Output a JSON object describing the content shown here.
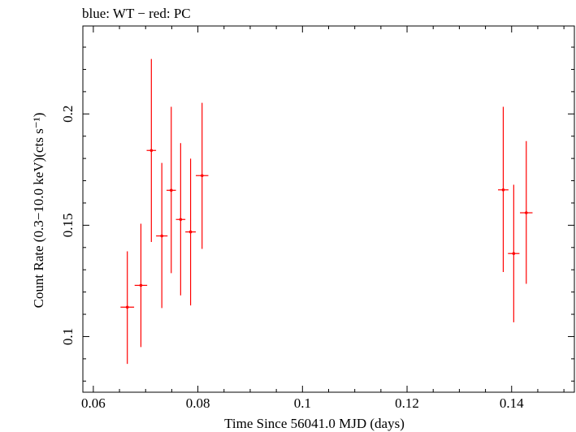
{
  "chart_data": {
    "type": "scatter",
    "title": "blue: WT − red: PC",
    "xlabel": "Time Since 56041.0 MJD (days)",
    "ylabel": "Count Rate (0.3−10.0 keV)(cts s⁻¹)",
    "xlim": [
      0.058,
      0.152
    ],
    "ylim": [
      0.075,
      0.2395
    ],
    "x_ticks": [
      0.06,
      0.08,
      0.1,
      0.12,
      0.14
    ],
    "x_tick_labels": [
      "0.06",
      "0.08",
      "0.1",
      "0.12",
      "0.14"
    ],
    "y_ticks": [
      0.1,
      0.15,
      0.2
    ],
    "y_tick_labels": [
      "0.1",
      "0.15",
      "0.2"
    ],
    "grid": false,
    "colors": {
      "series": "#ff0000",
      "axes": "#000000"
    },
    "series": [
      {
        "points": [
          {
            "x": 0.0665,
            "xerr": 0.0013,
            "y": 0.1132,
            "ylo": 0.0877,
            "yhi": 0.1383
          },
          {
            "x": 0.0691,
            "xerr": 0.0012,
            "y": 0.123,
            "ylo": 0.0953,
            "yhi": 0.1507
          },
          {
            "x": 0.0711,
            "xerr": 0.0009,
            "y": 0.1836,
            "ylo": 0.1425,
            "yhi": 0.2247
          },
          {
            "x": 0.0731,
            "xerr": 0.0011,
            "y": 0.1452,
            "ylo": 0.1128,
            "yhi": 0.178
          },
          {
            "x": 0.0749,
            "xerr": 0.0009,
            "y": 0.1657,
            "ylo": 0.1285,
            "yhi": 0.2032
          },
          {
            "x": 0.0767,
            "xerr": 0.0009,
            "y": 0.1526,
            "ylo": 0.1185,
            "yhi": 0.1869
          },
          {
            "x": 0.0786,
            "xerr": 0.001,
            "y": 0.147,
            "ylo": 0.114,
            "yhi": 0.1799
          },
          {
            "x": 0.0808,
            "xerr": 0.0012,
            "y": 0.1723,
            "ylo": 0.1394,
            "yhi": 0.205
          },
          {
            "x": 0.1384,
            "xerr": 0.001,
            "y": 0.1659,
            "ylo": 0.129,
            "yhi": 0.2032
          },
          {
            "x": 0.1404,
            "xerr": 0.0011,
            "y": 0.1373,
            "ylo": 0.1064,
            "yhi": 0.1682
          },
          {
            "x": 0.1428,
            "xerr": 0.0012,
            "y": 0.1556,
            "ylo": 0.1237,
            "yhi": 0.1878
          }
        ]
      }
    ]
  }
}
